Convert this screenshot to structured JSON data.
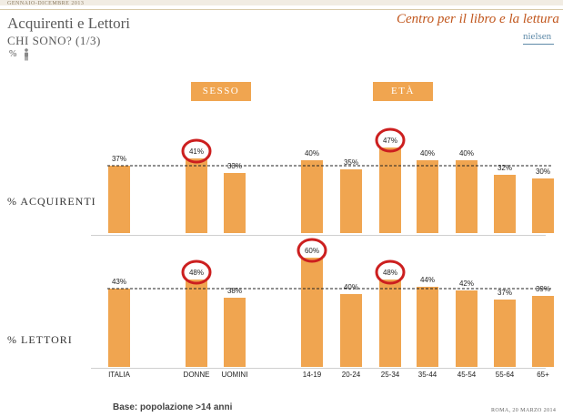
{
  "header": {
    "period": "GENNAIO-DICEMBRE 2013",
    "title": "Acquirenti e Lettori",
    "subtitle": "CHI SONO? (1/3)",
    "unit": "%",
    "brand": "Centro per il libro e la lettura",
    "logo": "nielsen"
  },
  "sections": {
    "sesso": "SESSO",
    "eta": "ETÀ"
  },
  "row_labels": {
    "acquirenti": "% ACQUIRENTI",
    "lettori": "% LETTORI"
  },
  "footer": {
    "base": "Base: popolazione >14 anni",
    "place_date": "ROMA, 20 MARZO 2014"
  },
  "colors": {
    "bar": "#f0a550",
    "header_box": "#f0a550",
    "circle": "#cc1f1f",
    "brand": "#c1561c",
    "reference_line": "#222222"
  },
  "chart_data": [
    {
      "type": "bar",
      "title": "% ACQUIRENTI",
      "categories": [
        "ITALIA",
        "DONNE",
        "UOMINI",
        "14-19",
        "20-24",
        "25-34",
        "35-44",
        "45-54",
        "55-64",
        "65+"
      ],
      "values": [
        37,
        41,
        33,
        40,
        35,
        47,
        40,
        40,
        32,
        30
      ],
      "labels": [
        "37%",
        "41%",
        "33%",
        "40%",
        "35%",
        "47%",
        "40%",
        "40%",
        "32%",
        "30%"
      ],
      "reference_line": 37,
      "highlighted": [
        "DONNE",
        "25-34"
      ]
    },
    {
      "type": "bar",
      "title": "% LETTORI",
      "categories": [
        "ITALIA",
        "DONNE",
        "UOMINI",
        "14-19",
        "20-24",
        "25-34",
        "35-44",
        "45-54",
        "55-64",
        "65+"
      ],
      "values": [
        43,
        48,
        38,
        60,
        40,
        48,
        44,
        42,
        37,
        39
      ],
      "labels": [
        "43%",
        "48%",
        "38%",
        "60%",
        "40%",
        "48%",
        "44%",
        "42%",
        "37%",
        "39%"
      ],
      "reference_line": 43,
      "highlighted": [
        "DONNE",
        "14-19",
        "25-34"
      ]
    }
  ]
}
